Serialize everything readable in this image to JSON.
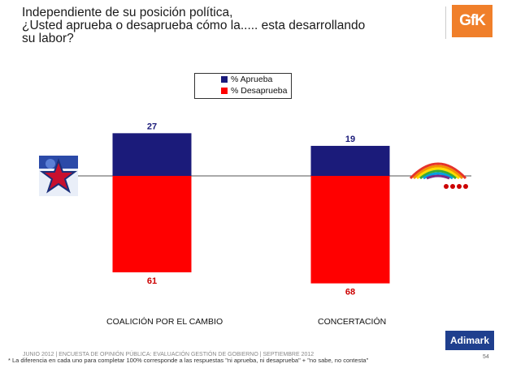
{
  "title_lines": [
    "Independiente de su posición política,",
    "¿Usted aprueba o desaprueba cómo la..... esta desarrollando",
    "su labor?"
  ],
  "brand": {
    "gfk": "GfK",
    "adimark": "Adimark"
  },
  "legend": {
    "aprueba": "% Aprueba",
    "desaprueba": "% Desaprueba"
  },
  "colors": {
    "aprueba": "#1b1b7a",
    "desaprueba": "#ff0000"
  },
  "chart_data": {
    "type": "bar",
    "stacked_diverging": true,
    "categories": [
      "COALICIÓN POR EL CAMBIO",
      "CONCERTACIÓN"
    ],
    "series": [
      {
        "name": "% Aprueba",
        "values": [
          27,
          19
        ]
      },
      {
        "name": "% Desaprueba",
        "values": [
          61,
          68
        ]
      }
    ]
  },
  "footer": {
    "source": "JUNIO 2012 | ENCUESTA DE OPINIÓN PÚBLICA: EVALUACIÓN GESTIÓN DE GOBIERNO | SEPTIEMBRE 2012",
    "note": "* La diferencia en cada uno para completar 100% corresponde a las respuestas \"ni aprueba, ni desaprueba\" + \"no sabe, no contesta\"",
    "page": "54"
  }
}
